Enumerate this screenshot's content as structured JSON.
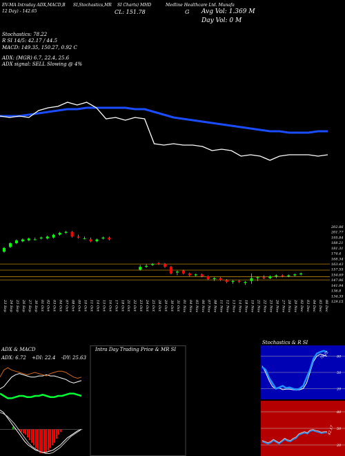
{
  "header": {
    "left1": "EV-MA Intraday ADX,MACD,B",
    "left2": "12 Day) - 142.65",
    "center1": "SI,Stochastics,MR",
    "center2": "SI Charts) MHD",
    "cl": "CL: 151.78",
    "title": "Medline Healthcare   Ltd. Munafa",
    "g": "G",
    "avg_vol": "Avg Vol: 1.369 M",
    "day_vol": "Day Vol: 0   M"
  },
  "info": {
    "stoch": "Stochastics: 78.22",
    "rsi": "R               SI 14/5: 42.17 / 44.5",
    "macd": "MACD: 149.35, 150.27,  0.92  C",
    "adx": "ADX:                            (MGR) 6.7, 22.4,  25.6",
    "signal": "ADX  signal: SELL  Slowing @ 4%"
  },
  "colors": {
    "background": "#000000",
    "price_line": "#ffffff",
    "ma_line": "#1a4dff",
    "candle_up": "#00ff00",
    "candle_down": "#ff0000",
    "level_lines": "#b8860b"
  },
  "chart_data": [
    {
      "type": "line",
      "name": "price-vs-moving-average",
      "series": [
        {
          "values": [
            186,
            185,
            186,
            185,
            190,
            192,
            193,
            196,
            194,
            196,
            192,
            184,
            185,
            183,
            185,
            184,
            166,
            165,
            166,
            165,
            165,
            164,
            161,
            162,
            161,
            157,
            158,
            157,
            154,
            157,
            158,
            158,
            158,
            157,
            158
          ]
        },
        {
          "values": [
            186,
            186,
            186,
            187,
            188,
            189,
            190,
            191,
            191,
            192,
            192,
            192,
            192,
            192,
            191,
            191,
            189,
            187,
            185,
            184,
            183,
            182,
            181,
            180,
            179,
            178,
            177,
            176,
            175,
            175,
            174,
            174,
            174,
            175,
            175
          ]
        }
      ]
    },
    {
      "type": "candlestick",
      "name": "daily-candles",
      "dates": [
        "23 Sep",
        "24 Sep",
        "25 Sep",
        "26 Sep",
        "27 Sep",
        "30 Sep",
        "01 Oct",
        "02 Oct",
        "03 Oct",
        "04 Oct",
        "07 Oct",
        "08 Oct",
        "09 Oct",
        "10 Oct",
        "11 Oct",
        "14 Oct",
        "15 Oct",
        "16 Oct",
        "17 Oct",
        "18 Oct",
        "21 Oct",
        "22 Oct",
        "23 Oct",
        "24 Oct",
        "25 Oct",
        "28 Oct",
        "29 Oct",
        "30 Oct",
        "31 Oct",
        "01 Nov",
        "04 Nov",
        "05 Nov",
        "06 Nov",
        "07 Nov",
        "08 Nov",
        "11 Nov",
        "12 Nov",
        "13 Nov",
        "14 Nov",
        "18 Nov",
        "19 Nov",
        "21 Nov",
        "22 Nov",
        "25 Nov",
        "26 Nov",
        "27 Nov",
        "28 Nov",
        "29 Nov",
        "02 Dec",
        "03 Dec",
        "04 Dec",
        "05 Dec",
        "06 Dec"
      ],
      "ohlc": [
        [
          176,
          181,
          175,
          180
        ],
        [
          181,
          186,
          180,
          185
        ],
        [
          185,
          189,
          184,
          188
        ],
        [
          187,
          190,
          186,
          189
        ],
        [
          188,
          191,
          187,
          190
        ],
        [
          189,
          191,
          188,
          189
        ],
        [
          190,
          192,
          189,
          191
        ],
        [
          190,
          193,
          189,
          192
        ],
        [
          191,
          195,
          190,
          194
        ],
        [
          194,
          197,
          193,
          196
        ],
        [
          196,
          198,
          195,
          197
        ],
        [
          197,
          198,
          191,
          192
        ],
        [
          192,
          194,
          190,
          191
        ],
        [
          190,
          192,
          189,
          190
        ],
        [
          189,
          191,
          186,
          187
        ],
        [
          187,
          190,
          186,
          189
        ],
        [
          190,
          192,
          189,
          191
        ],
        [
          191,
          192,
          188,
          189
        ],
        [
          null,
          null,
          null,
          null
        ],
        [
          null,
          null,
          null,
          null
        ],
        [
          null,
          null,
          null,
          null
        ],
        [
          null,
          null,
          null,
          null
        ],
        [
          157,
          162,
          156,
          160
        ],
        [
          160,
          163,
          159,
          161
        ],
        [
          162,
          164,
          161,
          163
        ],
        [
          164,
          165,
          162,
          163
        ],
        [
          163,
          164,
          159,
          160
        ],
        [
          160,
          161,
          152,
          153
        ],
        [
          154,
          156,
          151,
          155
        ],
        [
          156,
          157,
          152,
          153
        ],
        [
          153,
          154,
          150,
          151
        ],
        [
          151,
          153,
          150,
          152
        ],
        [
          152,
          153,
          149,
          150
        ],
        [
          150,
          151,
          146,
          147
        ],
        [
          147,
          149,
          145,
          148
        ],
        [
          148,
          149,
          145,
          146
        ],
        [
          146,
          147,
          143,
          144
        ],
        [
          144,
          146,
          142,
          145
        ],
        [
          145,
          146,
          143,
          144
        ],
        [
          143,
          145,
          141,
          144
        ],
        [
          145,
          153,
          142,
          148
        ],
        [
          148,
          150,
          145,
          149
        ],
        [
          149,
          151,
          147,
          148
        ],
        [
          148,
          151,
          147,
          150
        ],
        [
          150,
          152,
          148,
          151
        ],
        [
          151,
          152,
          149,
          150
        ],
        [
          150,
          152,
          149,
          151
        ],
        [
          151,
          153,
          150,
          152
        ],
        [
          152,
          154,
          151,
          153
        ],
        [
          null,
          null,
          null,
          null
        ],
        [
          null,
          null,
          null,
          null
        ],
        [
          null,
          null,
          null,
          null
        ],
        [
          null,
          null,
          null,
          null
        ]
      ],
      "levels": [
        163,
        156.5,
        149.5,
        146.2
      ],
      "tick_labels": [
        "202.86",
        "201.77",
        "195.84",
        "188.21",
        "181.31",
        "174.4",
        "168.34",
        "163.43",
        "157.55",
        "154.69",
        "147.96",
        "141.94",
        "136.8",
        "134.35",
        "129.15"
      ]
    },
    {
      "type": "line",
      "name": "adx-panel",
      "title": "ADX  & MACD",
      "labels": {
        "adx": "ADX: 6.72",
        "di_plus": "+DI: 22.4",
        "di_minus": "-DY: 25.63"
      },
      "series": [
        {
          "values": [
            16,
            18,
            22,
            26,
            28,
            29,
            28,
            27,
            26,
            26,
            27,
            27,
            28,
            27,
            27,
            26,
            25,
            24,
            22,
            21,
            22,
            23
          ]
        },
        {
          "values": [
            26,
            32,
            34,
            32,
            31,
            30,
            29,
            28,
            29,
            30,
            29,
            28,
            27,
            29,
            30,
            31,
            31,
            30,
            28,
            26,
            25,
            26
          ]
        },
        {
          "values": [
            12,
            10,
            8,
            8,
            9,
            10,
            10,
            9,
            9,
            10,
            10,
            11,
            10,
            9,
            9,
            10,
            10,
            11,
            12,
            12,
            11,
            10
          ]
        }
      ]
    },
    {
      "type": "bar",
      "name": "macd-histogram",
      "values": [
        1,
        0.5,
        0,
        -0.5,
        -1,
        -1.5,
        -2,
        -3,
        -4,
        -5,
        -6,
        -7,
        -8,
        -9,
        -9,
        -9,
        -8.5,
        -8,
        -7,
        -6,
        -5,
        -3.5,
        -2,
        -1,
        0
      ],
      "series": [
        {
          "values": [
            16,
            14,
            10,
            6,
            2,
            -2,
            -6,
            -10,
            -13,
            -15,
            -17,
            -18,
            -19,
            -19,
            -18,
            -17,
            -15,
            -13,
            -10,
            -7,
            -5,
            -3,
            -1,
            0
          ]
        },
        {
          "values": [
            14,
            13,
            11,
            8,
            5,
            1,
            -3,
            -7,
            -11,
            -14,
            -16,
            -18,
            -19,
            -20,
            -20,
            -19,
            -17,
            -15,
            -12,
            -9,
            -6,
            -4,
            -2,
            0
          ]
        }
      ]
    },
    {
      "type": "area",
      "name": "intraday-panel",
      "title": "Intra  Day Trading Price  & MR            SI",
      "values": []
    },
    {
      "type": "line",
      "name": "stochastics-panel",
      "title": "Stochastics & R          SI",
      "tick_labels": [
        "80",
        "50",
        "20"
      ],
      "value_label": "78.22",
      "series": [
        {
          "values": [
            60,
            55,
            40,
            30,
            20,
            22,
            25,
            21,
            22,
            20,
            18,
            20,
            25,
            40,
            55,
            75,
            85,
            88,
            90,
            88
          ]
        },
        {
          "values": [
            62,
            50,
            35,
            24,
            19,
            21,
            18,
            19,
            19,
            18,
            17,
            18,
            20,
            30,
            50,
            70,
            80,
            84,
            82,
            80
          ]
        }
      ]
    },
    {
      "type": "line",
      "name": "rsi-panel",
      "tick_labels": [
        "80",
        "50",
        "20"
      ],
      "value_label": "42.17",
      "series": [
        {
          "values": [
            26,
            24,
            22,
            24,
            28,
            25,
            22,
            26,
            30,
            27,
            26,
            30,
            32,
            38,
            40,
            42,
            40,
            45,
            46,
            44,
            43,
            41,
            42,
            42
          ]
        }
      ]
    }
  ]
}
